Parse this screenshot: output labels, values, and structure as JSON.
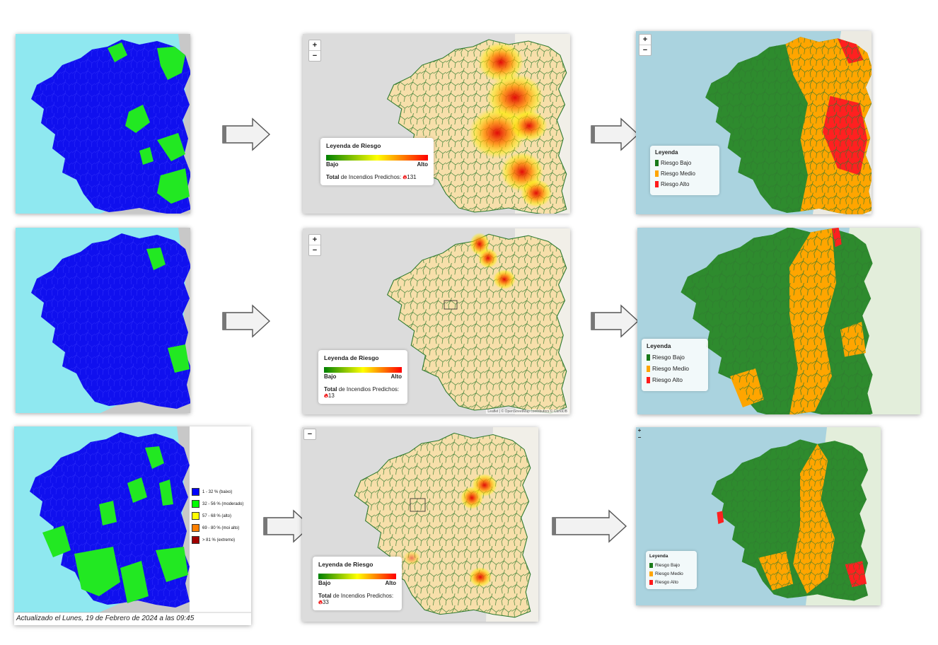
{
  "zoom_controls": {
    "plus": "+",
    "minus": "−"
  },
  "risk_legend": {
    "title": "Leyenda de Riesgo",
    "low": "Bajo",
    "high": "Alto",
    "total_bold": "Total",
    "total_rest": "de Incendios Predichos:",
    "fire_icon": "fire-icon"
  },
  "predicted_totals": [
    "131",
    "13",
    "33"
  ],
  "category_legend": {
    "title": "Leyenda",
    "items": [
      {
        "label": "Riesgo Bajo",
        "color": "#1a7a1a"
      },
      {
        "label": "Riesgo Medio",
        "color": "#ffa500"
      },
      {
        "label": "Riesgo Alto",
        "color": "#ff1a1a"
      }
    ]
  },
  "percent_legend": [
    {
      "label": "1 - 32 % (baixo)",
      "color": "#0000ff"
    },
    {
      "label": "32 - 56 % (moderado)",
      "color": "#00ff00"
    },
    {
      "label": "57 - 68 % (alto)",
      "color": "#ffff00"
    },
    {
      "label": "69 - 80 % (moi alto)",
      "color": "#ff8000"
    },
    {
      "label": "> 81 % (extremo)",
      "color": "#a00000"
    }
  ],
  "update_text": "Actualizado el Lunes, 19 de Febrero de 2024 a las 09:45",
  "attribution": "Leaflet | © OpenStreetMap contributors © CartoDB",
  "colors": {
    "sea": "#8fe8f0",
    "land_outside": "#c8c8c8",
    "prob_blue": "#1010ee",
    "prob_green": "#22e822",
    "heat_land": "#f7dfaa",
    "border": "#2f7a2f",
    "map_sea": "#aad3df"
  }
}
